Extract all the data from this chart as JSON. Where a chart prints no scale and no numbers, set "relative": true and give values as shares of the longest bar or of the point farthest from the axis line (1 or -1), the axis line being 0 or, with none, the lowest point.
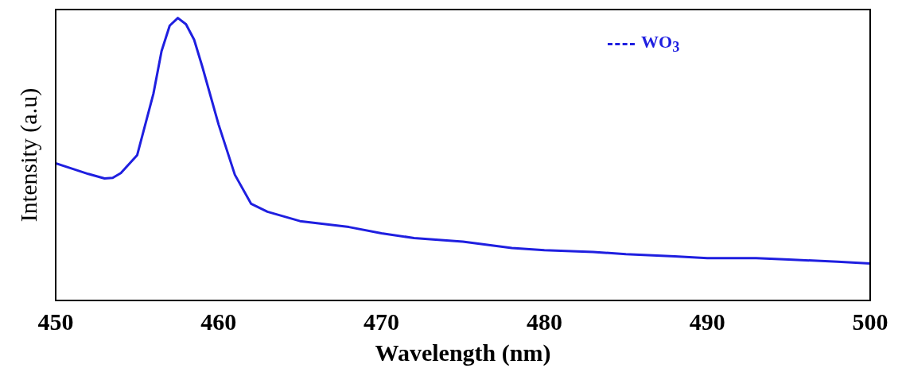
{
  "chart_data": {
    "type": "line",
    "xlabel": "Wavelength (nm)",
    "ylabel": "Intensity (a.u)",
    "relative": true,
    "xlim": [
      450,
      500
    ],
    "xticks": [
      450,
      460,
      470,
      480,
      490,
      500
    ],
    "grid": false,
    "legend": "top right",
    "marker": "none",
    "series": [
      {
        "name": "WO$_{3}$",
        "color": "#1f1fe0",
        "x": [
          450,
          451,
          452,
          453,
          453.5,
          454,
          455,
          456,
          456.5,
          457,
          457.5,
          458,
          458.5,
          459,
          460,
          461,
          462,
          463,
          465,
          468,
          470,
          472,
          475,
          478,
          480,
          483,
          485,
          488,
          490,
          493,
          495,
          498,
          500
        ],
        "values": [
          0.486,
          0.467,
          0.448,
          0.432,
          0.434,
          0.451,
          0.514,
          0.732,
          0.883,
          0.973,
          1.0,
          0.978,
          0.923,
          0.828,
          0.623,
          0.445,
          0.342,
          0.314,
          0.281,
          0.26,
          0.238,
          0.221,
          0.208,
          0.186,
          0.178,
          0.172,
          0.164,
          0.156,
          0.15,
          0.15,
          0.145,
          0.137,
          0.131
        ]
      }
    ]
  }
}
